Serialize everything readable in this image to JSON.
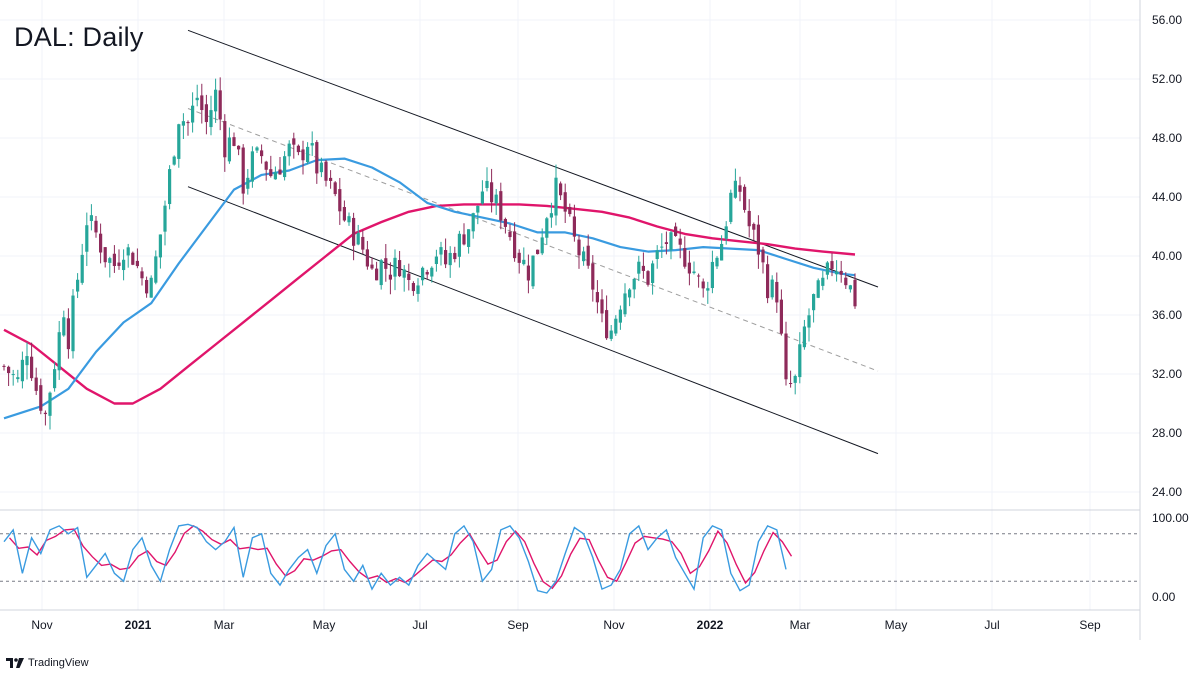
{
  "chart_data": [
    {
      "type": "candlestick",
      "title": "DAL: Daily",
      "ylim": [
        22,
        57
      ],
      "y_ticks": [
        "24.00",
        "28.00",
        "32.00",
        "36.00",
        "40.00",
        "44.00",
        "48.00",
        "52.00",
        "56.00"
      ],
      "x_ticks": [
        "Nov",
        "2021",
        "Mar",
        "May",
        "Jul",
        "Sep",
        "Nov",
        "2022",
        "Mar",
        "May",
        "Jul",
        "Sep"
      ],
      "colors": {
        "up": "#26a69a",
        "down": "#8e2a5a",
        "ma_fast": "#3a9be0",
        "ma_slow": "#e0156b",
        "channel": "#131722",
        "midline": "#9e9e9e"
      },
      "price_path": [
        [
          0,
          32.5
        ],
        [
          3,
          31.5
        ],
        [
          5,
          33.8
        ],
        [
          7,
          31.0
        ],
        [
          9,
          29.2
        ],
        [
          11,
          32.8
        ],
        [
          13,
          36.5
        ],
        [
          14,
          34.5
        ],
        [
          16,
          38.5
        ],
        [
          18,
          42.5
        ],
        [
          20,
          41.5
        ],
        [
          22,
          40.0
        ],
        [
          24,
          39.4
        ],
        [
          26,
          40.6
        ],
        [
          28,
          40.0
        ],
        [
          30,
          38.5
        ],
        [
          32,
          38.0
        ],
        [
          34,
          41.5
        ],
        [
          36,
          45.5
        ],
        [
          38,
          49.5
        ],
        [
          40,
          49.0
        ],
        [
          42,
          50.8
        ],
        [
          44,
          49.0
        ],
        [
          46,
          51.0
        ],
        [
          48,
          47.5
        ],
        [
          50,
          48.0
        ],
        [
          52,
          44.8
        ],
        [
          54,
          46.5
        ],
        [
          56,
          46.8
        ],
        [
          58,
          45.5
        ],
        [
          60,
          46.2
        ],
        [
          62,
          47.2
        ],
        [
          64,
          46.5
        ],
        [
          66,
          47.8
        ],
        [
          68,
          46.0
        ],
        [
          70,
          45.0
        ],
        [
          72,
          44.0
        ],
        [
          74,
          42.5
        ],
        [
          76,
          41.5
        ],
        [
          78,
          40.5
        ],
        [
          80,
          39.0
        ],
        [
          82,
          39.5
        ],
        [
          84,
          39.0
        ],
        [
          86,
          39.5
        ],
        [
          88,
          38.2
        ],
        [
          90,
          38.8
        ],
        [
          92,
          39.5
        ],
        [
          94,
          40.3
        ],
        [
          96,
          39.5
        ],
        [
          98,
          40.5
        ],
        [
          100,
          41.5
        ],
        [
          102,
          42.5
        ],
        [
          104,
          44.5
        ],
        [
          106,
          44.0
        ],
        [
          108,
          43.0
        ],
        [
          110,
          41.5
        ],
        [
          112,
          40.0
        ],
        [
          114,
          39.0
        ],
        [
          116,
          40.5
        ],
        [
          118,
          43.0
        ],
        [
          120,
          44.5
        ],
        [
          122,
          43.0
        ],
        [
          124,
          41.0
        ],
        [
          126,
          39.5
        ],
        [
          128,
          38.0
        ],
        [
          130,
          35.5
        ],
        [
          132,
          35.0
        ],
        [
          134,
          37.0
        ],
        [
          136,
          38.5
        ],
        [
          138,
          39.0
        ],
        [
          140,
          38.5
        ],
        [
          142,
          40.0
        ],
        [
          144,
          41.0
        ],
        [
          146,
          40.5
        ],
        [
          148,
          40.0
        ],
        [
          150,
          39.0
        ],
        [
          152,
          37.5
        ],
        [
          154,
          39.5
        ],
        [
          156,
          41.0
        ],
        [
          158,
          44.0
        ],
        [
          160,
          44.5
        ],
        [
          162,
          42.0
        ],
        [
          164,
          40.5
        ],
        [
          166,
          38.0
        ],
        [
          168,
          37.5
        ],
        [
          170,
          31.0
        ],
        [
          172,
          31.5
        ],
        [
          174,
          35.0
        ],
        [
          176,
          37.0
        ],
        [
          178,
          38.0
        ],
        [
          180,
          39.5
        ],
        [
          182,
          39.2
        ],
        [
          184,
          37.8
        ],
        [
          185,
          37.0
        ]
      ],
      "ma_fast": [
        [
          0,
          29.0
        ],
        [
          8,
          29.8
        ],
        [
          14,
          31.0
        ],
        [
          20,
          33.5
        ],
        [
          26,
          35.5
        ],
        [
          32,
          36.8
        ],
        [
          38,
          39.5
        ],
        [
          44,
          42.0
        ],
        [
          50,
          44.5
        ],
        [
          56,
          45.5
        ],
        [
          62,
          45.8
        ],
        [
          68,
          46.5
        ],
        [
          74,
          46.6
        ],
        [
          80,
          46.0
        ],
        [
          86,
          45.0
        ],
        [
          92,
          43.6
        ],
        [
          98,
          43.0
        ],
        [
          104,
          42.6
        ],
        [
          110,
          42.2
        ],
        [
          116,
          41.6
        ],
        [
          122,
          41.6
        ],
        [
          128,
          41.2
        ],
        [
          134,
          40.6
        ],
        [
          140,
          40.3
        ],
        [
          146,
          40.4
        ],
        [
          152,
          40.6
        ],
        [
          158,
          40.5
        ],
        [
          164,
          40.4
        ],
        [
          170,
          39.8
        ],
        [
          176,
          39.2
        ],
        [
          182,
          38.8
        ],
        [
          185,
          38.7
        ]
      ],
      "ma_slow": [
        [
          0,
          35.0
        ],
        [
          6,
          34.0
        ],
        [
          12,
          32.5
        ],
        [
          18,
          31.0
        ],
        [
          24,
          30.0
        ],
        [
          28,
          30.0
        ],
        [
          34,
          31.0
        ],
        [
          40,
          32.5
        ],
        [
          46,
          34.0
        ],
        [
          52,
          35.5
        ],
        [
          58,
          37.0
        ],
        [
          64,
          38.5
        ],
        [
          70,
          40.0
        ],
        [
          76,
          41.5
        ],
        [
          82,
          42.3
        ],
        [
          88,
          43.0
        ],
        [
          94,
          43.4
        ],
        [
          100,
          43.5
        ],
        [
          106,
          43.5
        ],
        [
          112,
          43.5
        ],
        [
          118,
          43.4
        ],
        [
          124,
          43.2
        ],
        [
          130,
          43.0
        ],
        [
          136,
          42.6
        ],
        [
          142,
          42.0
        ],
        [
          148,
          41.5
        ],
        [
          154,
          41.2
        ],
        [
          160,
          41.0
        ],
        [
          166,
          40.8
        ],
        [
          172,
          40.5
        ],
        [
          178,
          40.3
        ],
        [
          185,
          40.1
        ]
      ],
      "channel_lines": [
        {
          "name": "upper",
          "from": [
            40,
            55.3
          ],
          "to": [
            190,
            37.9
          ]
        },
        {
          "name": "lower",
          "from": [
            40,
            44.7
          ],
          "to": [
            190,
            26.6
          ]
        },
        {
          "name": "mid",
          "from": [
            40,
            50.0
          ],
          "to": [
            190,
            32.2
          ]
        }
      ],
      "grid": true
    },
    {
      "type": "line",
      "ylim": [
        0,
        100
      ],
      "y_ticks": [
        "0.00",
        "100.00"
      ],
      "levels": [
        80,
        20
      ],
      "k_line": [
        [
          0,
          70
        ],
        [
          2,
          85
        ],
        [
          4,
          30
        ],
        [
          6,
          75
        ],
        [
          8,
          55
        ],
        [
          10,
          85
        ],
        [
          12,
          90
        ],
        [
          14,
          80
        ],
        [
          16,
          88
        ],
        [
          18,
          25
        ],
        [
          20,
          40
        ],
        [
          22,
          55
        ],
        [
          24,
          30
        ],
        [
          26,
          20
        ],
        [
          28,
          60
        ],
        [
          30,
          75
        ],
        [
          32,
          40
        ],
        [
          34,
          20
        ],
        [
          36,
          60
        ],
        [
          38,
          90
        ],
        [
          40,
          92
        ],
        [
          42,
          88
        ],
        [
          44,
          70
        ],
        [
          46,
          60
        ],
        [
          48,
          70
        ],
        [
          50,
          88
        ],
        [
          52,
          25
        ],
        [
          54,
          75
        ],
        [
          56,
          80
        ],
        [
          58,
          30
        ],
        [
          60,
          15
        ],
        [
          62,
          35
        ],
        [
          64,
          50
        ],
        [
          66,
          60
        ],
        [
          68,
          30
        ],
        [
          70,
          65
        ],
        [
          72,
          80
        ],
        [
          74,
          35
        ],
        [
          76,
          20
        ],
        [
          78,
          40
        ],
        [
          80,
          10
        ],
        [
          82,
          30
        ],
        [
          84,
          15
        ],
        [
          86,
          25
        ],
        [
          88,
          15
        ],
        [
          90,
          40
        ],
        [
          92,
          55
        ],
        [
          94,
          45
        ],
        [
          96,
          35
        ],
        [
          98,
          80
        ],
        [
          100,
          90
        ],
        [
          102,
          70
        ],
        [
          104,
          20
        ],
        [
          106,
          35
        ],
        [
          108,
          85
        ],
        [
          110,
          90
        ],
        [
          112,
          75
        ],
        [
          114,
          45
        ],
        [
          116,
          8
        ],
        [
          118,
          5
        ],
        [
          120,
          20
        ],
        [
          122,
          55
        ],
        [
          124,
          88
        ],
        [
          126,
          80
        ],
        [
          128,
          50
        ],
        [
          130,
          10
        ],
        [
          132,
          15
        ],
        [
          134,
          35
        ],
        [
          136,
          80
        ],
        [
          138,
          90
        ],
        [
          140,
          60
        ],
        [
          142,
          75
        ],
        [
          144,
          85
        ],
        [
          146,
          50
        ],
        [
          148,
          30
        ],
        [
          150,
          10
        ],
        [
          152,
          75
        ],
        [
          154,
          90
        ],
        [
          156,
          85
        ],
        [
          158,
          30
        ],
        [
          160,
          8
        ],
        [
          162,
          15
        ],
        [
          164,
          70
        ],
        [
          166,
          90
        ],
        [
          168,
          85
        ],
        [
          170,
          35
        ]
      ]
    }
  ],
  "brand": "TradingView"
}
